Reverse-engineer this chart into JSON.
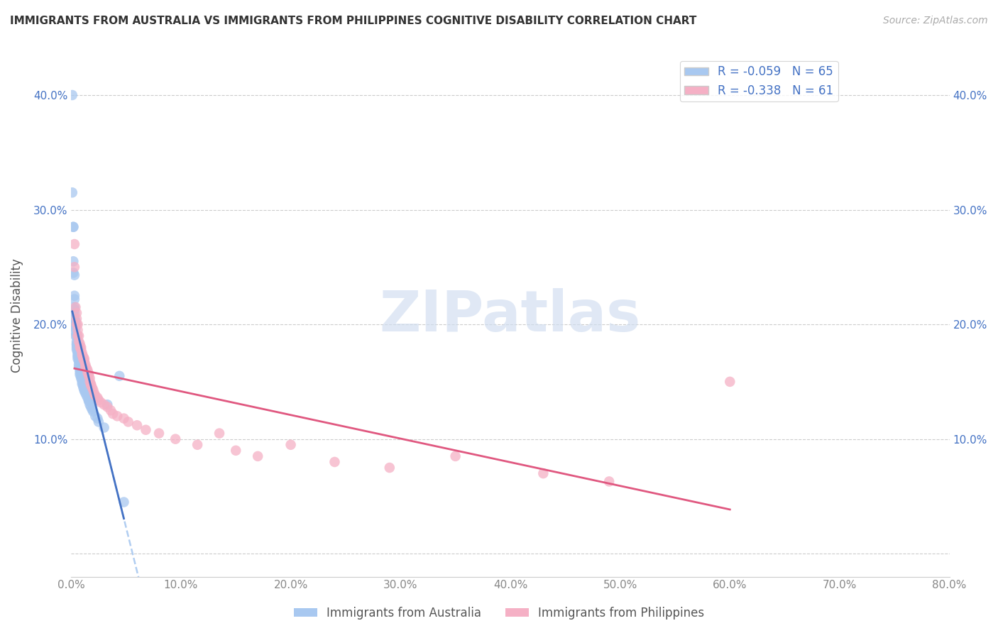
{
  "title": "IMMIGRANTS FROM AUSTRALIA VS IMMIGRANTS FROM PHILIPPINES COGNITIVE DISABILITY CORRELATION CHART",
  "source": "Source: ZipAtlas.com",
  "ylabel": "Cognitive Disability",
  "xlim": [
    0.0,
    0.8
  ],
  "ylim": [
    -0.02,
    0.435
  ],
  "australia_R": -0.059,
  "australia_N": 65,
  "philippines_R": -0.338,
  "philippines_N": 61,
  "australia_color": "#a8c8f0",
  "australia_line_color": "#4472c4",
  "philippines_color": "#f5b0c5",
  "philippines_line_color": "#e05880",
  "australia_dash_color": "#a8c8f0",
  "watermark_color": "#d0ddf0",
  "australia_points_x": [
    0.001,
    0.001,
    0.002,
    0.002,
    0.002,
    0.002,
    0.003,
    0.003,
    0.003,
    0.003,
    0.003,
    0.003,
    0.003,
    0.004,
    0.004,
    0.004,
    0.004,
    0.004,
    0.004,
    0.004,
    0.004,
    0.005,
    0.005,
    0.005,
    0.005,
    0.005,
    0.005,
    0.006,
    0.006,
    0.006,
    0.006,
    0.006,
    0.007,
    0.007,
    0.007,
    0.007,
    0.008,
    0.008,
    0.008,
    0.008,
    0.009,
    0.009,
    0.01,
    0.01,
    0.01,
    0.011,
    0.011,
    0.012,
    0.012,
    0.013,
    0.014,
    0.015,
    0.016,
    0.016,
    0.017,
    0.018,
    0.019,
    0.02,
    0.022,
    0.024,
    0.025,
    0.03,
    0.033,
    0.044,
    0.048
  ],
  "australia_points_y": [
    0.4,
    0.315,
    0.285,
    0.285,
    0.255,
    0.245,
    0.243,
    0.225,
    0.222,
    0.215,
    0.213,
    0.21,
    0.205,
    0.203,
    0.2,
    0.2,
    0.198,
    0.198,
    0.196,
    0.193,
    0.19,
    0.19,
    0.185,
    0.183,
    0.182,
    0.18,
    0.178,
    0.176,
    0.175,
    0.173,
    0.172,
    0.17,
    0.17,
    0.168,
    0.165,
    0.163,
    0.162,
    0.16,
    0.158,
    0.156,
    0.155,
    0.153,
    0.152,
    0.15,
    0.148,
    0.147,
    0.145,
    0.143,
    0.142,
    0.14,
    0.138,
    0.136,
    0.134,
    0.133,
    0.13,
    0.128,
    0.126,
    0.124,
    0.12,
    0.118,
    0.115,
    0.11,
    0.13,
    0.155,
    0.045
  ],
  "philippines_points_x": [
    0.003,
    0.003,
    0.004,
    0.005,
    0.005,
    0.005,
    0.006,
    0.006,
    0.006,
    0.007,
    0.007,
    0.008,
    0.008,
    0.009,
    0.009,
    0.01,
    0.01,
    0.011,
    0.011,
    0.012,
    0.012,
    0.013,
    0.013,
    0.014,
    0.015,
    0.015,
    0.016,
    0.016,
    0.017,
    0.017,
    0.018,
    0.018,
    0.019,
    0.02,
    0.021,
    0.022,
    0.024,
    0.025,
    0.027,
    0.03,
    0.033,
    0.036,
    0.038,
    0.042,
    0.048,
    0.052,
    0.06,
    0.068,
    0.08,
    0.095,
    0.115,
    0.135,
    0.15,
    0.17,
    0.2,
    0.24,
    0.29,
    0.35,
    0.43,
    0.49,
    0.6
  ],
  "philippines_points_y": [
    0.27,
    0.25,
    0.215,
    0.21,
    0.205,
    0.2,
    0.2,
    0.195,
    0.19,
    0.19,
    0.185,
    0.183,
    0.18,
    0.18,
    0.178,
    0.175,
    0.173,
    0.172,
    0.17,
    0.17,
    0.168,
    0.165,
    0.163,
    0.162,
    0.16,
    0.158,
    0.157,
    0.155,
    0.153,
    0.15,
    0.148,
    0.147,
    0.145,
    0.143,
    0.14,
    0.138,
    0.136,
    0.134,
    0.132,
    0.13,
    0.128,
    0.125,
    0.122,
    0.12,
    0.118,
    0.115,
    0.112,
    0.108,
    0.105,
    0.1,
    0.095,
    0.105,
    0.09,
    0.085,
    0.095,
    0.08,
    0.075,
    0.085,
    0.07,
    0.063,
    0.15
  ]
}
